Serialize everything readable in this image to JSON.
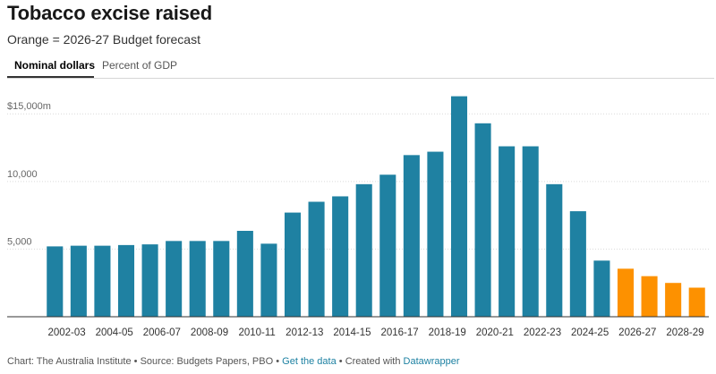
{
  "header": {
    "title": "Tobacco excise raised",
    "subtitle": "Orange = 2026-27 Budget forecast"
  },
  "tabs": [
    {
      "label": "Nominal dollars",
      "active": true
    },
    {
      "label": "Percent of GDP",
      "active": false
    }
  ],
  "colors": {
    "actual": "#1f81a2",
    "forecast": "#fd9100",
    "grid": "#d9d9d9",
    "axis": "#333333",
    "link": "#1d81a2"
  },
  "chart_data": {
    "type": "bar",
    "categories": [
      "2002-03",
      "2003-04",
      "2004-05",
      "2005-06",
      "2006-07",
      "2007-08",
      "2008-09",
      "2009-10",
      "2010-11",
      "2011-12",
      "2012-13",
      "2013-14",
      "2014-15",
      "2015-16",
      "2016-17",
      "2017-18",
      "2018-19",
      "2019-20",
      "2020-21",
      "2021-22",
      "2022-23",
      "2023-24",
      "2024-25",
      "2025-26",
      "2026-27",
      "2027-28",
      "2028-29",
      "2029-30"
    ],
    "values": [
      5200,
      5250,
      5250,
      5300,
      5350,
      5600,
      5600,
      5600,
      6350,
      5400,
      7700,
      8500,
      8900,
      9800,
      10500,
      11950,
      12200,
      16300,
      14300,
      12600,
      12600,
      9800,
      7800,
      4150,
      3550,
      3000,
      2500,
      2150
    ],
    "forecast_from_index": 24,
    "x_tick_labels": [
      "2002-03",
      "2004-05",
      "2006-07",
      "2008-09",
      "2010-11",
      "2012-13",
      "2014-15",
      "2016-17",
      "2018-19",
      "2020-21",
      "2022-23",
      "2024-25",
      "2026-27",
      "2028-29"
    ],
    "y_ticks": [
      {
        "value": 5000,
        "label": "5,000"
      },
      {
        "value": 10000,
        "label": "10,000"
      },
      {
        "value": 15000,
        "label": "$15,000m"
      }
    ],
    "ylim": [
      0,
      17000
    ],
    "grid": true
  },
  "footer": {
    "credit": "Chart: The Australia Institute",
    "source": "Source: Budgets Papers, PBO",
    "get_data": "Get the data",
    "created_with": "Created with",
    "tool": "Datawrapper",
    "separator": "•"
  }
}
